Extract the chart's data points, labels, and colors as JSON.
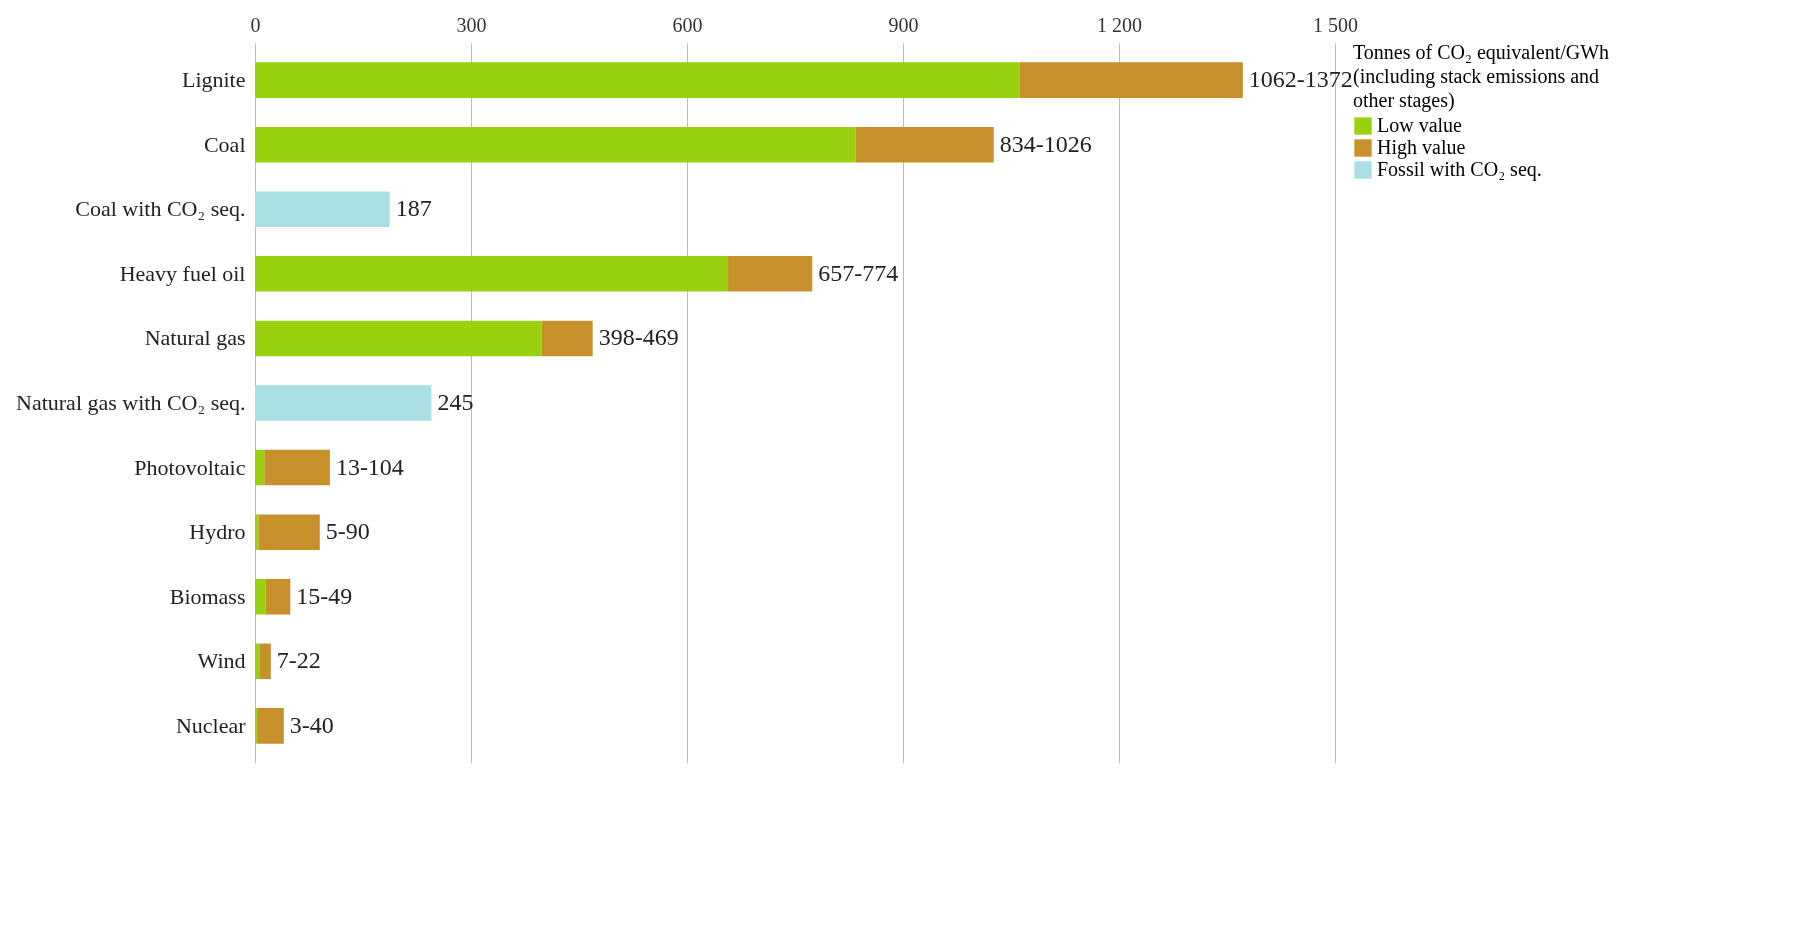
{
  "chart_data": {
    "type": "bar",
    "orientation": "horizontal",
    "stacked": true,
    "legend_title": "Tonnes of CO₂ equivalent/GWh (including stack emissions and other stages)",
    "categories": [
      "Lignite",
      "Coal",
      "Coal with CO₂ seq.",
      "Heavy fuel oil",
      "Natural gas",
      "Natural gas with CO₂ seq.",
      "Photovoltaic",
      "Hydro",
      "Biomass",
      "Wind",
      "Nuclear"
    ],
    "series": [
      {
        "name": "Low value",
        "color": "#99d10f",
        "values": [
          1062,
          834,
          null,
          657,
          398,
          null,
          13,
          5,
          15,
          7,
          3
        ]
      },
      {
        "name": "High value",
        "color": "#c8902a",
        "values": [
          310,
          192,
          null,
          117,
          71,
          null,
          91,
          85,
          34,
          15,
          37
        ],
        "value_labels": [
          "1062-1372",
          "834-1026",
          null,
          "657-774",
          "398-469",
          null,
          "13-104",
          "5-90",
          "15-49",
          "7-22",
          "3-40"
        ]
      },
      {
        "name": "Fossil with CO₂ seq.",
        "color": "#a9dfe3",
        "values": [
          null,
          null,
          187,
          null,
          null,
          245,
          null,
          null,
          null,
          null,
          null
        ],
        "value_labels": [
          null,
          null,
          "187",
          null,
          null,
          "245",
          null,
          null,
          null,
          null,
          null
        ]
      }
    ],
    "xlim": [
      0,
      1500
    ],
    "xticks": [
      0,
      300,
      600,
      900,
      {
        "value": 1200,
        "label": "1 200"
      },
      {
        "value": 1500,
        "label": "1 500"
      }
    ],
    "grid": true,
    "legend": "right"
  }
}
